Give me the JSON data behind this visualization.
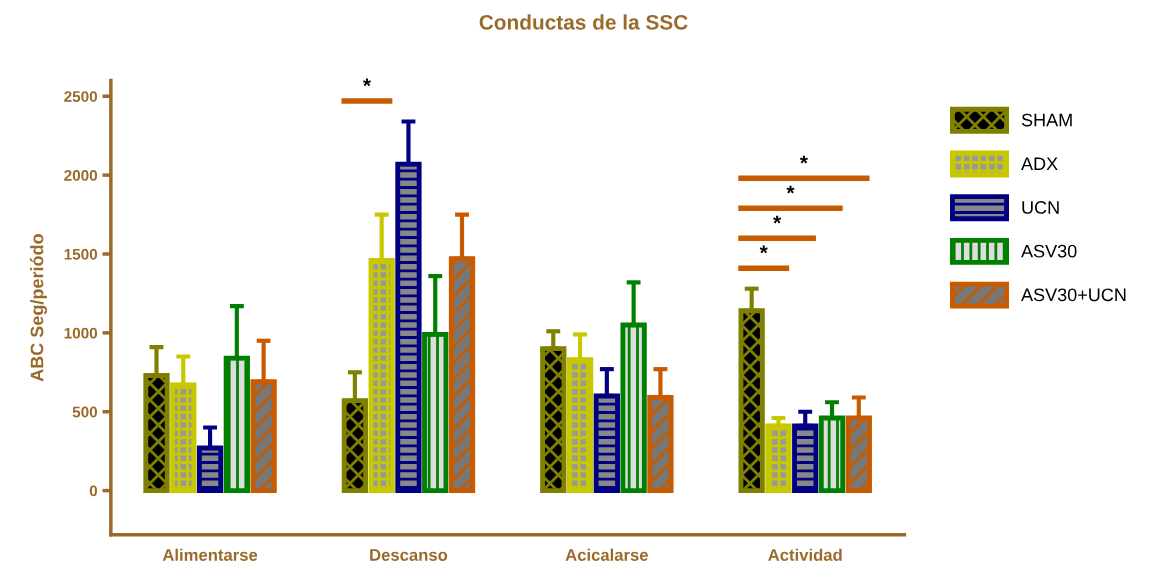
{
  "chart_data": {
    "type": "bar",
    "title": "Conductas de la SSC",
    "ylabel": "ABC Seg/periódo",
    "categories": [
      "Alimentarse",
      "Descanso",
      "Acicalarse",
      "Actividad"
    ],
    "series": [
      {
        "name": "SHAM",
        "color": "#7f7f00",
        "values": [
          730,
          570,
          900,
          1140
        ],
        "errors": [
          [
            730,
            910
          ],
          [
            570,
            750
          ],
          [
            900,
            1010
          ],
          [
            1140,
            1280
          ]
        ]
      },
      {
        "name": "ADX",
        "color": "#c8c800",
        "values": [
          670,
          1460,
          830,
          410
        ],
        "errors": [
          [
            670,
            850
          ],
          [
            1460,
            1750
          ],
          [
            830,
            990
          ],
          [
            410,
            460
          ]
        ]
      },
      {
        "name": "UCN",
        "color": "#000080",
        "values": [
          270,
          2070,
          600,
          410
        ],
        "errors": [
          [
            270,
            400
          ],
          [
            2070,
            2340
          ],
          [
            600,
            770
          ],
          [
            410,
            500
          ]
        ]
      },
      {
        "name": "ASV30",
        "color": "#008000",
        "values": [
          840,
          990,
          1050,
          460
        ],
        "errors": [
          [
            840,
            1170
          ],
          [
            990,
            1360
          ],
          [
            1050,
            1320
          ],
          [
            460,
            560
          ]
        ]
      },
      {
        "name": "ASV30+UCN",
        "color": "#c85a00",
        "values": [
          690,
          1470,
          590,
          460
        ],
        "errors": [
          [
            690,
            950
          ],
          [
            1470,
            1750
          ],
          [
            590,
            770
          ],
          [
            460,
            590
          ]
        ]
      }
    ],
    "ylim": [
      -280,
      2600
    ],
    "yticks": [
      0,
      500,
      1000,
      1500,
      2000,
      2500
    ],
    "grid": false,
    "legend": "right",
    "annotations": [
      "*",
      "*",
      "*",
      "*",
      "*"
    ]
  }
}
